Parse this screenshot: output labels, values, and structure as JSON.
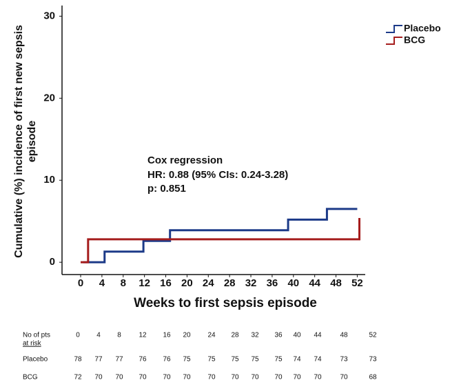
{
  "chart_data": {
    "type": "step",
    "xlabel": "Weeks to first sepsis episode",
    "ylabel": [
      "Cumulative (%) incidence of first new sepsis",
      "episode"
    ],
    "xlim": [
      -3.5,
      53.5
    ],
    "ylim": [
      -1.5,
      31.3
    ],
    "xticks": [
      0,
      4,
      8,
      12,
      16,
      20,
      24,
      28,
      32,
      36,
      40,
      44,
      48,
      52
    ],
    "yticks": [
      0,
      10,
      20,
      30
    ],
    "legend": "top-right",
    "annotations": [
      "Cox regression",
      "HR: 0.88 (95% CIs: 0.24-3.28)",
      "p: 0.851"
    ],
    "series": [
      {
        "name": "Placebo",
        "color": "#1c3a88",
        "x": [
          0.5,
          4.5,
          11.8,
          16.8,
          39,
          46.3,
          52
        ],
        "values": [
          0,
          1.3,
          2.6,
          3.9,
          5.2,
          6.5,
          6.5
        ]
      },
      {
        "name": "BCG",
        "color": "#a51c1c",
        "x": [
          0,
          1.4,
          52.4
        ],
        "values": [
          0,
          2.8,
          5.4
        ]
      }
    ],
    "risk_table": {
      "label": [
        "No of pts",
        "at risk"
      ],
      "weeks": [
        "0",
        "4",
        "8",
        "12",
        "16",
        "20",
        "24",
        "28",
        "32",
        "36",
        "40",
        "44",
        "48",
        "52"
      ],
      "rows": [
        {
          "name": "Placebo",
          "values": [
            "78",
            "77",
            "77",
            "76",
            "76",
            "75",
            "75",
            "75",
            "75",
            "75",
            "74",
            "74",
            "73",
            "73"
          ]
        },
        {
          "name": "BCG",
          "values": [
            "72",
            "70",
            "70",
            "70",
            "70",
            "70",
            "70",
            "70",
            "70",
            "70",
            "70",
            "70",
            "70",
            "68"
          ]
        }
      ]
    }
  }
}
